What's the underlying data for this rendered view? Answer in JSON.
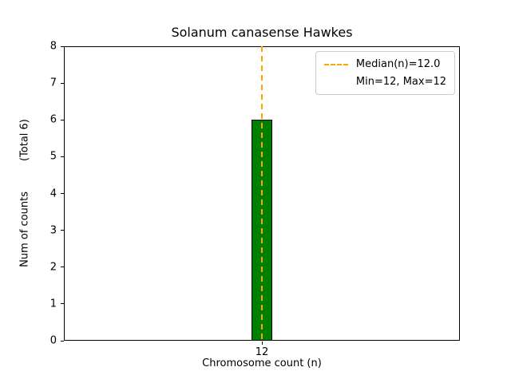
{
  "chart_data": {
    "type": "bar",
    "title": "Solanum canasense Hawkes",
    "xlabel": "Chromosome count (n)",
    "ylabel": "Num of counts",
    "ylabel_total": "(Total 6)",
    "categories": [
      "12"
    ],
    "values": [
      6
    ],
    "ylim": [
      0,
      8
    ],
    "yticks": [
      0,
      1,
      2,
      3,
      4,
      5,
      6,
      7,
      8
    ],
    "grid": false,
    "bar_color": "#008000",
    "bar_edge_color": "#000000",
    "median": {
      "value": 12.0,
      "at_category": "12",
      "line_color": "#FFA500",
      "line_style": "dashed"
    },
    "min": 12,
    "max": 12,
    "total_counts": 6,
    "legend": [
      "Median(n)=12.0",
      "Min=12, Max=12"
    ],
    "legend_position": "upper right"
  }
}
